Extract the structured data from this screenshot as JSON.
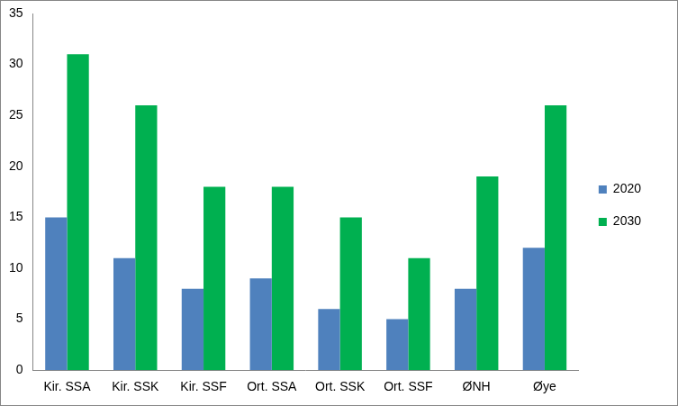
{
  "chart_data": {
    "type": "bar",
    "categories": [
      "Kir. SSA",
      "Kir. SSK",
      "Kir. SSF",
      "Ort. SSA",
      "Ort. SSK",
      "Ort. SSF",
      "ØNH",
      "Øye"
    ],
    "series": [
      {
        "name": "2020",
        "color": "#4f81bd",
        "values": [
          15,
          11,
          8,
          9,
          6,
          5,
          8,
          12
        ]
      },
      {
        "name": "2030",
        "color": "#00b050",
        "values": [
          31,
          26,
          18,
          18,
          15,
          11,
          19,
          26
        ]
      }
    ],
    "ylim": [
      0,
      35
    ],
    "yticks": [
      0,
      5,
      10,
      15,
      20,
      25,
      30,
      35
    ],
    "grid": false,
    "legend": "right"
  }
}
